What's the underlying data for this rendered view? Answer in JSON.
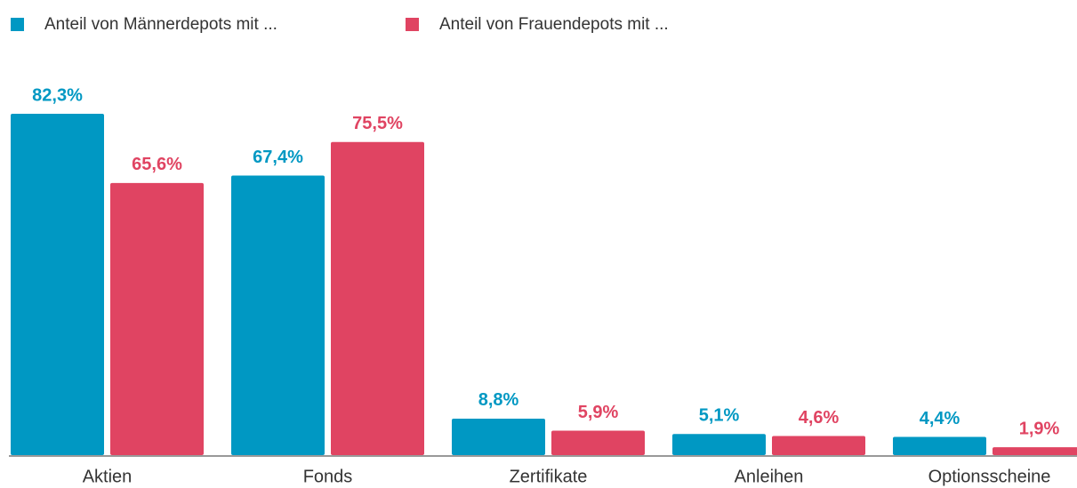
{
  "chart_data": {
    "type": "bar",
    "categories": [
      "Aktien",
      "Fonds",
      "Zertifikate",
      "Anleihen",
      "Optionsscheine"
    ],
    "series": [
      {
        "name": "Anteil von Männerdepots mit ...",
        "color": "#0098c3",
        "values": [
          82.3,
          67.4,
          8.8,
          5.1,
          4.4
        ],
        "value_labels": [
          "82,3%",
          "67,4%",
          "8,8%",
          "5,1%",
          "4,4%"
        ]
      },
      {
        "name": "Anteil von Frauendepots mit ...",
        "color": "#e04462",
        "values": [
          65.6,
          75.5,
          5.9,
          4.6,
          1.9
        ],
        "value_labels": [
          "65,6%",
          "75,5%",
          "5,9%",
          "4,6%",
          "1,9%"
        ]
      }
    ]
  }
}
